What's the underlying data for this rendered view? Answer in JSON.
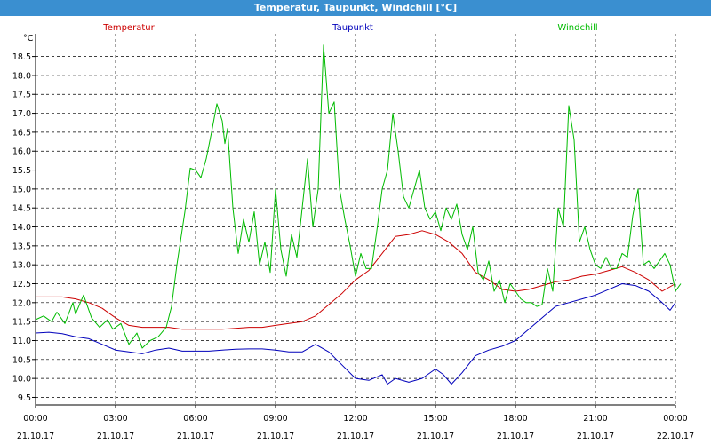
{
  "window": {
    "title": "Temperatur, Taupunkt, Windchill [°C]"
  },
  "chart_data": {
    "type": "line",
    "title": "Temperatur, Taupunkt, Windchill [°C]",
    "ylabel": "°C",
    "ylim": [
      9.3,
      19.1
    ],
    "yticks": [
      9.5,
      10.0,
      10.5,
      11.0,
      11.5,
      12.0,
      12.5,
      13.0,
      13.5,
      14.0,
      14.5,
      15.0,
      15.5,
      16.0,
      16.5,
      17.0,
      17.5,
      18.0,
      18.5
    ],
    "xlim": [
      0,
      24
    ],
    "xticks": [
      {
        "h": 0,
        "time": "00:00",
        "date": "21.10.17"
      },
      {
        "h": 3,
        "time": "03:00",
        "date": "21.10.17"
      },
      {
        "h": 6,
        "time": "06:00",
        "date": "21.10.17"
      },
      {
        "h": 9,
        "time": "09:00",
        "date": "21.10.17"
      },
      {
        "h": 12,
        "time": "12:00",
        "date": "21.10.17"
      },
      {
        "h": 15,
        "time": "15:00",
        "date": "21.10.17"
      },
      {
        "h": 18,
        "time": "18:00",
        "date": "21.10.17"
      },
      {
        "h": 21,
        "time": "21:00",
        "date": "21.10.17"
      },
      {
        "h": 24,
        "time": "00:00",
        "date": "22.10.17"
      }
    ],
    "grid": true,
    "legend_position": "top",
    "series": [
      {
        "name": "Temperatur",
        "color": "#cc0000",
        "points": [
          [
            0,
            12.15
          ],
          [
            0.5,
            12.15
          ],
          [
            1,
            12.15
          ],
          [
            1.5,
            12.1
          ],
          [
            2,
            12.0
          ],
          [
            2.5,
            11.85
          ],
          [
            3,
            11.6
          ],
          [
            3.5,
            11.4
          ],
          [
            4,
            11.35
          ],
          [
            4.5,
            11.35
          ],
          [
            5,
            11.35
          ],
          [
            5.5,
            11.3
          ],
          [
            6,
            11.3
          ],
          [
            6.5,
            11.3
          ],
          [
            7,
            11.3
          ],
          [
            7.5,
            11.32
          ],
          [
            8,
            11.35
          ],
          [
            8.5,
            11.35
          ],
          [
            9,
            11.4
          ],
          [
            9.5,
            11.45
          ],
          [
            10,
            11.5
          ],
          [
            10.5,
            11.65
          ],
          [
            11,
            11.95
          ],
          [
            11.5,
            12.25
          ],
          [
            12,
            12.6
          ],
          [
            12.5,
            12.85
          ],
          [
            13,
            13.3
          ],
          [
            13.5,
            13.75
          ],
          [
            14,
            13.8
          ],
          [
            14.5,
            13.9
          ],
          [
            15,
            13.8
          ],
          [
            15.5,
            13.6
          ],
          [
            16,
            13.3
          ],
          [
            16.5,
            12.8
          ],
          [
            17,
            12.6
          ],
          [
            17.5,
            12.35
          ],
          [
            18,
            12.3
          ],
          [
            18.5,
            12.35
          ],
          [
            19,
            12.45
          ],
          [
            19.5,
            12.55
          ],
          [
            20,
            12.6
          ],
          [
            20.5,
            12.7
          ],
          [
            21,
            12.75
          ],
          [
            21.5,
            12.85
          ],
          [
            22,
            12.95
          ],
          [
            22.5,
            12.8
          ],
          [
            23,
            12.6
          ],
          [
            23.5,
            12.3
          ],
          [
            24,
            12.5
          ]
        ]
      },
      {
        "name": "Taupunkt",
        "color": "#0000bb",
        "points": [
          [
            0,
            11.2
          ],
          [
            0.5,
            11.22
          ],
          [
            1,
            11.18
          ],
          [
            1.5,
            11.1
          ],
          [
            2,
            11.05
          ],
          [
            2.5,
            10.9
          ],
          [
            3,
            10.75
          ],
          [
            3.5,
            10.7
          ],
          [
            4,
            10.65
          ],
          [
            4.5,
            10.75
          ],
          [
            5,
            10.8
          ],
          [
            5.5,
            10.72
          ],
          [
            6,
            10.72
          ],
          [
            6.5,
            10.72
          ],
          [
            7,
            10.75
          ],
          [
            7.5,
            10.77
          ],
          [
            8,
            10.78
          ],
          [
            8.5,
            10.78
          ],
          [
            9,
            10.75
          ],
          [
            9.5,
            10.7
          ],
          [
            10,
            10.7
          ],
          [
            10.5,
            10.9
          ],
          [
            11,
            10.7
          ],
          [
            11.5,
            10.35
          ],
          [
            12,
            10.0
          ],
          [
            12.5,
            9.95
          ],
          [
            13,
            10.1
          ],
          [
            13.2,
            9.85
          ],
          [
            13.5,
            10.0
          ],
          [
            14,
            9.9
          ],
          [
            14.5,
            10.0
          ],
          [
            15,
            10.25
          ],
          [
            15.3,
            10.1
          ],
          [
            15.6,
            9.85
          ],
          [
            16,
            10.15
          ],
          [
            16.5,
            10.6
          ],
          [
            17,
            10.75
          ],
          [
            17.5,
            10.85
          ],
          [
            18,
            11.0
          ],
          [
            18.5,
            11.3
          ],
          [
            19,
            11.6
          ],
          [
            19.5,
            11.9
          ],
          [
            20,
            12.0
          ],
          [
            20.5,
            12.1
          ],
          [
            21,
            12.2
          ],
          [
            21.5,
            12.35
          ],
          [
            22,
            12.5
          ],
          [
            22.5,
            12.45
          ],
          [
            23,
            12.3
          ],
          [
            23.5,
            12.0
          ],
          [
            23.8,
            11.8
          ],
          [
            24,
            12.0
          ]
        ]
      },
      {
        "name": "Windchill",
        "color": "#00bb00",
        "points": [
          [
            0,
            11.55
          ],
          [
            0.3,
            11.65
          ],
          [
            0.6,
            11.5
          ],
          [
            0.8,
            11.75
          ],
          [
            1.1,
            11.45
          ],
          [
            1.4,
            12.0
          ],
          [
            1.5,
            11.7
          ],
          [
            1.8,
            12.2
          ],
          [
            2.1,
            11.6
          ],
          [
            2.4,
            11.35
          ],
          [
            2.7,
            11.55
          ],
          [
            2.9,
            11.3
          ],
          [
            3.2,
            11.45
          ],
          [
            3.5,
            10.9
          ],
          [
            3.8,
            11.2
          ],
          [
            4.0,
            10.8
          ],
          [
            4.3,
            11.0
          ],
          [
            4.6,
            11.1
          ],
          [
            4.9,
            11.35
          ],
          [
            5.1,
            11.9
          ],
          [
            5.3,
            13.0
          ],
          [
            5.6,
            14.4
          ],
          [
            5.8,
            15.55
          ],
          [
            6.0,
            15.5
          ],
          [
            6.2,
            15.3
          ],
          [
            6.4,
            15.8
          ],
          [
            6.6,
            16.5
          ],
          [
            6.8,
            17.25
          ],
          [
            7.0,
            16.8
          ],
          [
            7.1,
            16.2
          ],
          [
            7.2,
            16.6
          ],
          [
            7.4,
            14.5
          ],
          [
            7.6,
            13.3
          ],
          [
            7.8,
            14.2
          ],
          [
            8.0,
            13.6
          ],
          [
            8.2,
            14.4
          ],
          [
            8.4,
            13.0
          ],
          [
            8.6,
            13.6
          ],
          [
            8.8,
            12.8
          ],
          [
            9.0,
            15.0
          ],
          [
            9.2,
            13.4
          ],
          [
            9.4,
            12.7
          ],
          [
            9.6,
            13.8
          ],
          [
            9.8,
            13.2
          ],
          [
            10.0,
            14.5
          ],
          [
            10.2,
            15.8
          ],
          [
            10.4,
            14.0
          ],
          [
            10.6,
            15.0
          ],
          [
            10.8,
            18.8
          ],
          [
            11.0,
            17.0
          ],
          [
            11.2,
            17.3
          ],
          [
            11.4,
            15.0
          ],
          [
            11.6,
            14.2
          ],
          [
            11.8,
            13.5
          ],
          [
            12.0,
            12.7
          ],
          [
            12.2,
            13.3
          ],
          [
            12.4,
            12.9
          ],
          [
            12.6,
            12.9
          ],
          [
            12.8,
            13.9
          ],
          [
            13.0,
            15.0
          ],
          [
            13.2,
            15.5
          ],
          [
            13.4,
            17.0
          ],
          [
            13.6,
            16.0
          ],
          [
            13.8,
            14.8
          ],
          [
            14.0,
            14.5
          ],
          [
            14.2,
            15.0
          ],
          [
            14.4,
            15.5
          ],
          [
            14.6,
            14.5
          ],
          [
            14.8,
            14.2
          ],
          [
            15.0,
            14.4
          ],
          [
            15.2,
            13.9
          ],
          [
            15.4,
            14.5
          ],
          [
            15.6,
            14.2
          ],
          [
            15.8,
            14.6
          ],
          [
            16.0,
            13.8
          ],
          [
            16.2,
            13.4
          ],
          [
            16.4,
            14.0
          ],
          [
            16.6,
            12.8
          ],
          [
            16.8,
            12.6
          ],
          [
            17.0,
            13.1
          ],
          [
            17.2,
            12.3
          ],
          [
            17.4,
            12.6
          ],
          [
            17.6,
            12.0
          ],
          [
            17.8,
            12.5
          ],
          [
            18.0,
            12.3
          ],
          [
            18.2,
            12.1
          ],
          [
            18.4,
            12.0
          ],
          [
            18.6,
            12.0
          ],
          [
            18.8,
            11.9
          ],
          [
            19.0,
            11.95
          ],
          [
            19.2,
            12.9
          ],
          [
            19.4,
            12.3
          ],
          [
            19.6,
            14.5
          ],
          [
            19.8,
            14.0
          ],
          [
            20.0,
            17.2
          ],
          [
            20.2,
            16.3
          ],
          [
            20.4,
            13.6
          ],
          [
            20.6,
            14.0
          ],
          [
            20.8,
            13.4
          ],
          [
            21.0,
            13.0
          ],
          [
            21.2,
            12.9
          ],
          [
            21.4,
            13.2
          ],
          [
            21.6,
            12.9
          ],
          [
            21.8,
            12.9
          ],
          [
            22.0,
            13.3
          ],
          [
            22.2,
            13.2
          ],
          [
            22.4,
            14.3
          ],
          [
            22.6,
            15.0
          ],
          [
            22.8,
            13.0
          ],
          [
            23.0,
            13.1
          ],
          [
            23.2,
            12.9
          ],
          [
            23.4,
            13.1
          ],
          [
            23.6,
            13.3
          ],
          [
            23.8,
            13.0
          ],
          [
            24.0,
            12.3
          ],
          [
            24.2,
            12.5
          ]
        ]
      }
    ]
  }
}
